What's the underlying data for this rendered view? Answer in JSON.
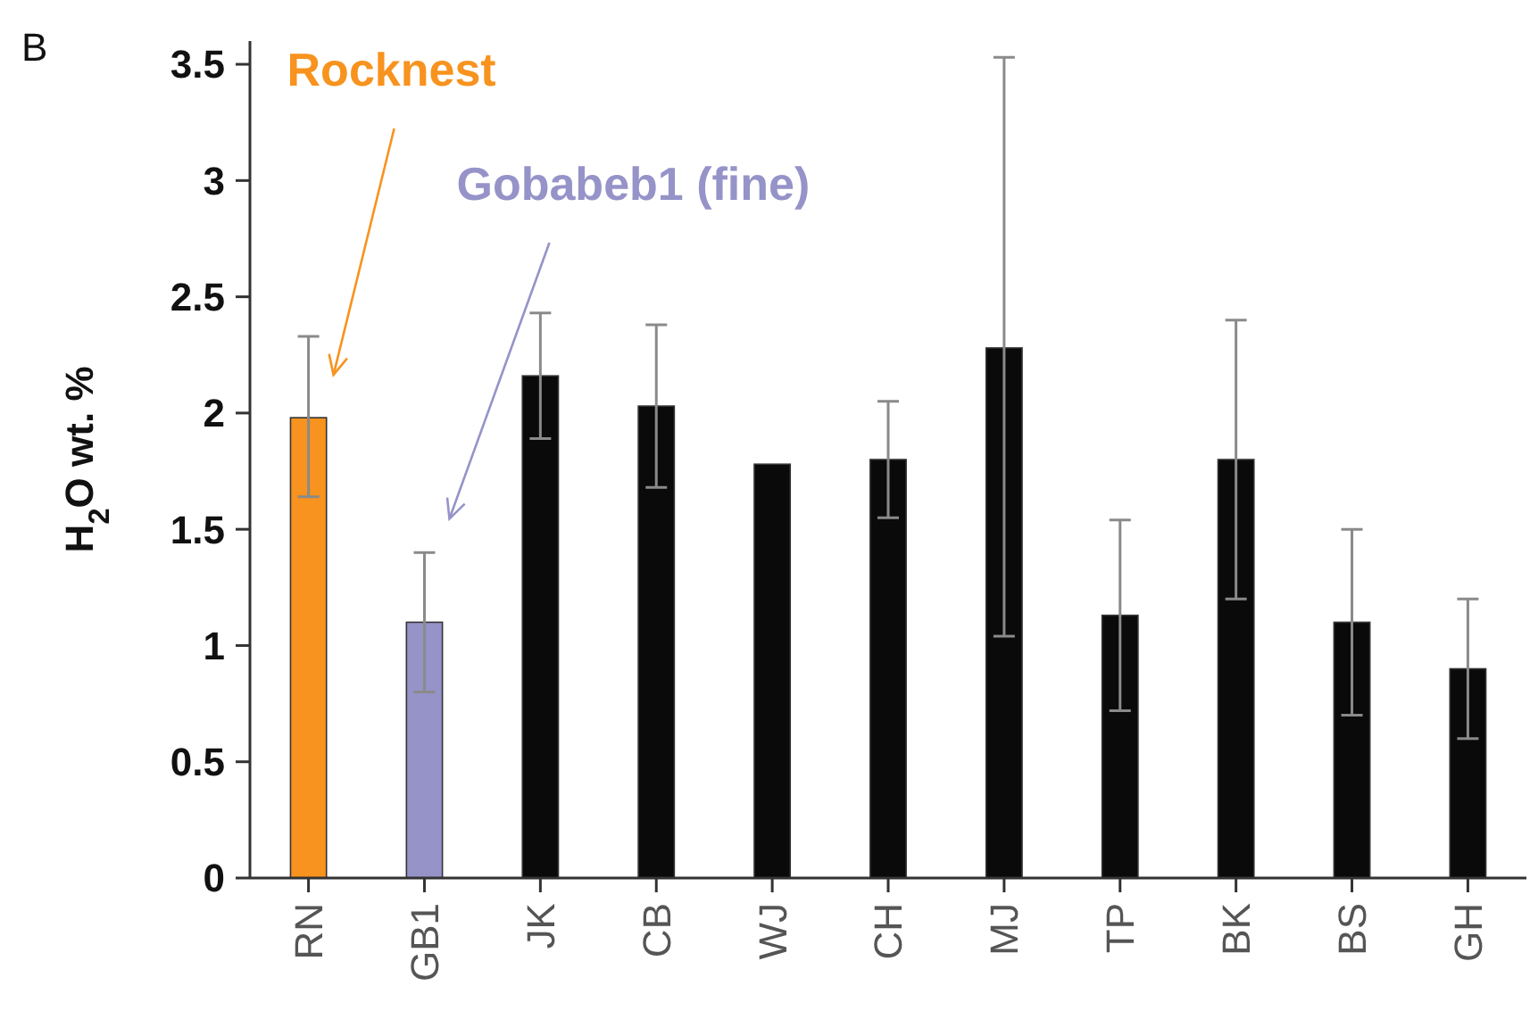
{
  "chart_data": {
    "type": "bar",
    "ylabel": "H$_{2}$O wt. %",
    "categories": [
      "RN",
      "GB1",
      "JK",
      "CB",
      "WJ",
      "CH",
      "MJ",
      "TP",
      "BK",
      "BS",
      "GH"
    ],
    "values": [
      1.98,
      1.1,
      2.16,
      2.03,
      1.78,
      1.8,
      2.28,
      1.13,
      1.8,
      1.1,
      0.9
    ],
    "colors": [
      "#f7931e",
      "#9593c8",
      "#0a0a0a",
      "#0a0a0a",
      "#0a0a0a",
      "#0a0a0a",
      "#0a0a0a",
      "#0a0a0a",
      "#0a0a0a",
      "#0a0a0a",
      "#0a0a0a"
    ],
    "errors": [
      [
        1.64,
        2.33
      ],
      [
        0.8,
        1.4
      ],
      [
        1.89,
        2.43
      ],
      [
        1.68,
        2.38
      ],
      null,
      [
        1.55,
        2.05
      ],
      [
        1.04,
        3.53
      ],
      [
        0.72,
        1.54
      ],
      [
        1.2,
        2.4
      ],
      [
        0.7,
        1.5
      ],
      [
        0.6,
        1.2
      ]
    ],
    "ylim": [
      0,
      3.6
    ],
    "yticks": [
      0,
      0.5,
      1,
      1.5,
      2,
      2.5,
      3,
      3.5
    ],
    "annotations": [
      "B",
      "Rocknest",
      "Gobabeb1 (fine)"
    ]
  }
}
